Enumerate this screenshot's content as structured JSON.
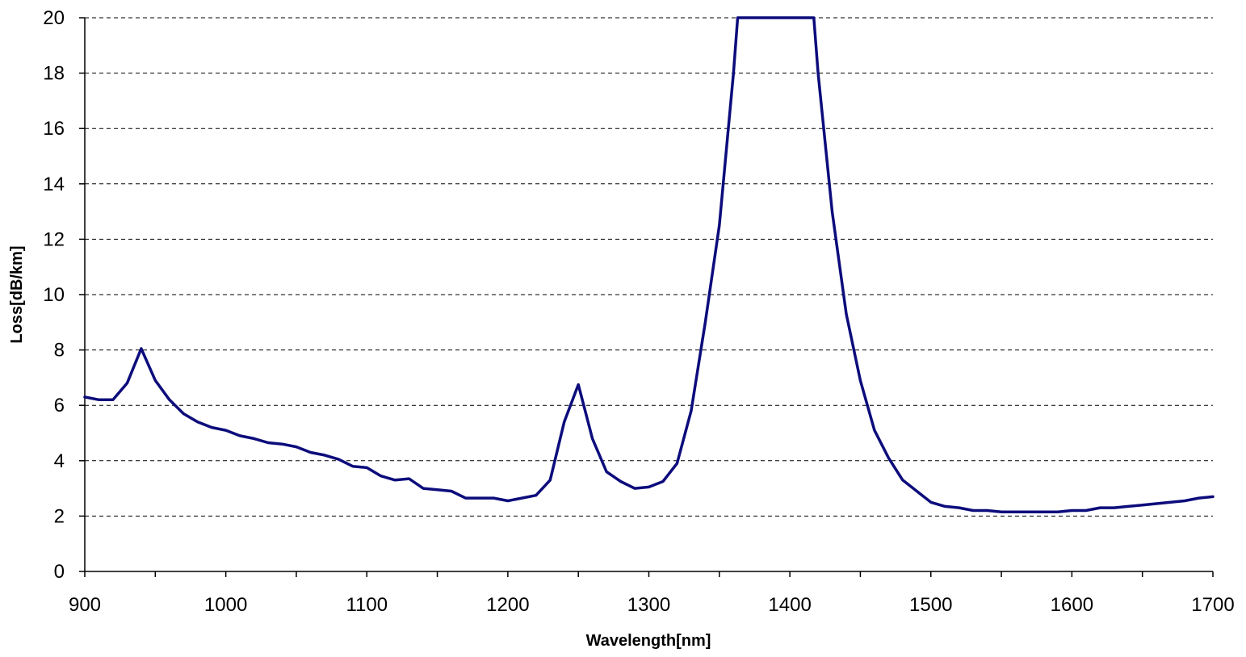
{
  "chart_data": {
    "type": "line",
    "title": "",
    "xlabel": "Wavelength[nm]",
    "ylabel": "Loss[dB/km]",
    "xlim": [
      900,
      1700
    ],
    "ylim": [
      0,
      20
    ],
    "x_ticks": [
      900,
      1000,
      1100,
      1200,
      1300,
      1400,
      1500,
      1600,
      1700
    ],
    "y_ticks": [
      0,
      2,
      4,
      6,
      8,
      10,
      12,
      14,
      16,
      18,
      20
    ],
    "grid": "horizontal dashed",
    "legend": "none",
    "line_color": "#0c0c7c",
    "series": [
      {
        "x": [
          900,
          910,
          920,
          930,
          940,
          950,
          960,
          970,
          980,
          990,
          1000,
          1010,
          1020,
          1030,
          1040,
          1050,
          1060,
          1070,
          1080,
          1090,
          1100,
          1110,
          1120,
          1130,
          1140,
          1150,
          1160,
          1170,
          1180,
          1190,
          1200,
          1210,
          1220,
          1230,
          1240,
          1250,
          1260,
          1270,
          1280,
          1290,
          1300,
          1310,
          1320,
          1330,
          1340,
          1350,
          1360,
          1363,
          1417,
          1420,
          1430,
          1440,
          1450,
          1460,
          1470,
          1480,
          1490,
          1500,
          1510,
          1520,
          1530,
          1540,
          1550,
          1560,
          1570,
          1580,
          1590,
          1600,
          1610,
          1620,
          1630,
          1640,
          1650,
          1660,
          1670,
          1680,
          1690,
          1700
        ],
        "y": [
          6.3,
          6.2,
          6.2,
          6.8,
          8.05,
          6.9,
          6.2,
          5.7,
          5.4,
          5.2,
          5.1,
          4.9,
          4.8,
          4.65,
          4.6,
          4.5,
          4.3,
          4.2,
          4.05,
          3.8,
          3.75,
          3.45,
          3.3,
          3.35,
          3.0,
          2.95,
          2.9,
          2.65,
          2.65,
          2.65,
          2.55,
          2.65,
          2.75,
          3.3,
          5.4,
          6.75,
          4.8,
          3.6,
          3.25,
          3.0,
          3.05,
          3.25,
          3.9,
          5.8,
          9.0,
          12.5,
          18.0,
          20.0,
          20.0,
          18.0,
          13.0,
          9.3,
          6.9,
          5.1,
          4.1,
          3.3,
          2.9,
          2.5,
          2.35,
          2.3,
          2.2,
          2.2,
          2.15,
          2.15,
          2.15,
          2.15,
          2.15,
          2.2,
          2.2,
          2.3,
          2.3,
          2.35,
          2.4,
          2.45,
          2.5,
          2.55,
          2.65,
          2.7
        ]
      }
    ]
  }
}
